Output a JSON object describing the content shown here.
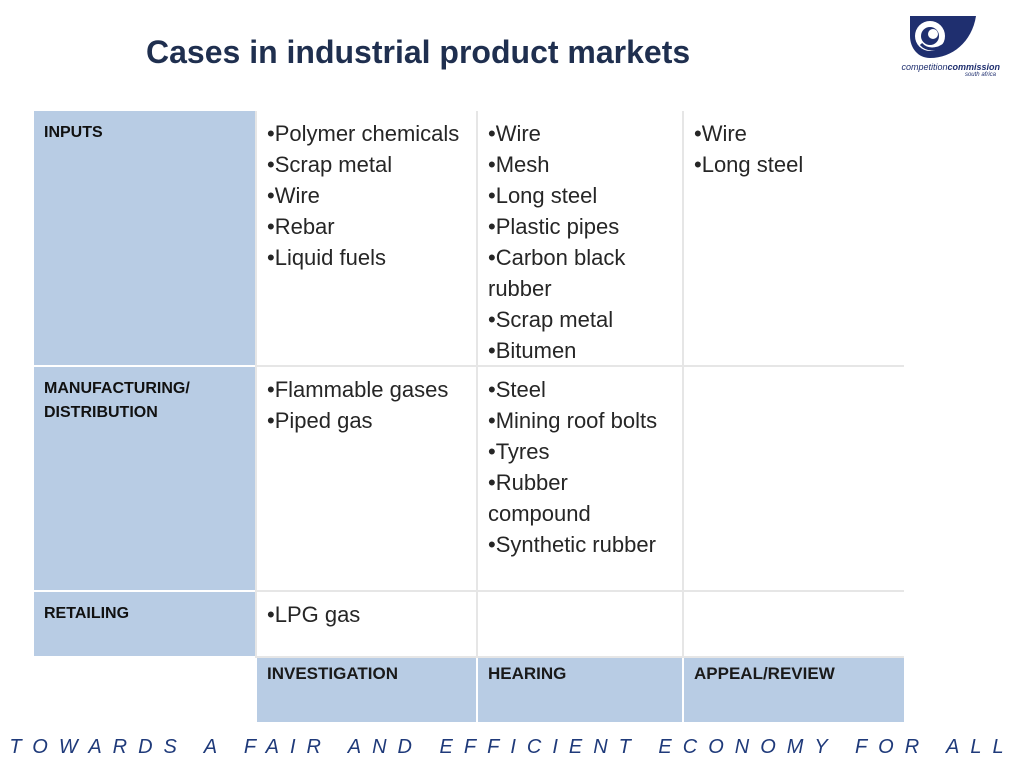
{
  "slide": {
    "title": "Cases in industrial product markets",
    "tagline": "TOWARDS A FAIR AND EFFICIENT ECONOMY FOR ALL"
  },
  "logo": {
    "name_light": "competition",
    "name_bold": "commission",
    "sub": "south africa"
  },
  "rows": [
    {
      "label": "INPUTS",
      "cells": [
        [
          "Polymer chemicals",
          "Scrap metal",
          "Wire",
          "Rebar",
          "Liquid fuels"
        ],
        [
          "Wire",
          "Mesh",
          "Long steel",
          "Plastic pipes",
          "Carbon black rubber",
          "Scrap metal",
          "Bitumen"
        ],
        [
          "Wire",
          "Long steel"
        ]
      ]
    },
    {
      "label": "MANUFACTURING/ DISTRIBUTION",
      "cells": [
        [
          "Flammable gases",
          "Piped gas"
        ],
        [
          "Steel",
          "Mining roof bolts",
          "Tyres",
          "Rubber compound",
          "Synthetic rubber"
        ],
        []
      ]
    },
    {
      "label": "RETAILING",
      "cells": [
        [
          "LPG gas"
        ],
        [],
        []
      ]
    }
  ],
  "columns": [
    "INVESTIGATION",
    "HEARING",
    "APPEAL/REVIEW"
  ],
  "colors": {
    "label_fill": "#b8cce4",
    "title": "#1f2f4f",
    "tagline": "#1f3a7a",
    "logo": "#1f2f6f"
  }
}
